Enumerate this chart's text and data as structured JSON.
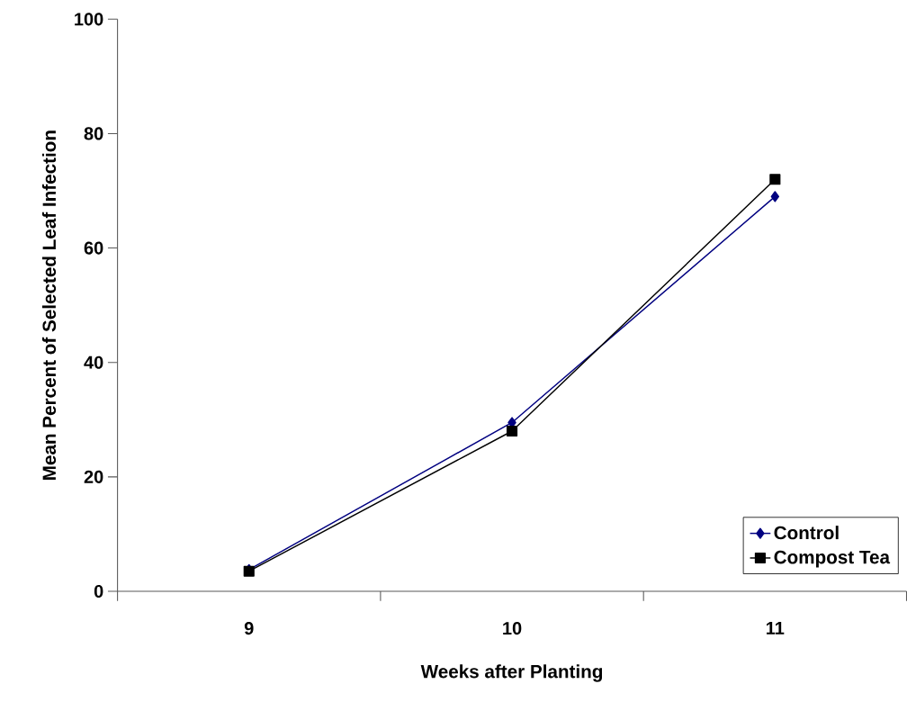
{
  "chart_data": {
    "type": "line",
    "xlabel": "Weeks after Planting",
    "ylabel": "Mean Percent of Selected Leaf Infection",
    "categories": [
      "9",
      "10",
      "11"
    ],
    "series": [
      {
        "name": "Control",
        "color": "#000080",
        "values": [
          3.8,
          29.5,
          69
        ],
        "marker": "diamond"
      },
      {
        "name": "Compost Tea",
        "color": "#000000",
        "values": [
          3.5,
          28,
          72
        ],
        "marker": "square"
      }
    ],
    "ylim": [
      0,
      100
    ],
    "yticks": [
      0,
      20,
      40,
      60,
      80,
      100
    ],
    "grid": false,
    "legend": "bottom right",
    "line_style": "solid"
  }
}
